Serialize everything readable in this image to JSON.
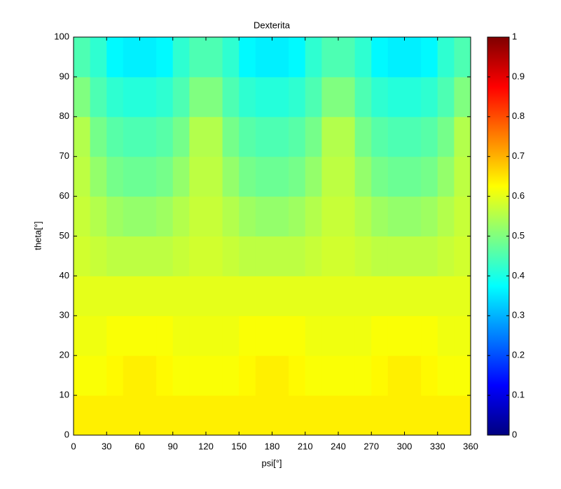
{
  "chart_data": {
    "type": "heatmap",
    "title": "Dexterita",
    "x_label": "psi[°]",
    "y_label": "theta[°]",
    "colormap": "jet",
    "xbins": [
      0,
      15,
      30,
      45,
      60,
      75,
      90,
      105,
      120,
      135,
      150,
      165,
      180,
      195,
      210,
      225,
      240,
      255,
      270,
      285,
      300,
      315,
      330,
      345,
      360
    ],
    "ybins": [
      0,
      10,
      20,
      30,
      40,
      50,
      60,
      70,
      80,
      90,
      100
    ],
    "z": [
      [
        0.64,
        0.64,
        0.64,
        0.64,
        0.64,
        0.64,
        0.64,
        0.64,
        0.64,
        0.64,
        0.64,
        0.64,
        0.64,
        0.64,
        0.64,
        0.64,
        0.64,
        0.64,
        0.64,
        0.64,
        0.64,
        0.64,
        0.64,
        0.64
      ],
      [
        0.62,
        0.62,
        0.63,
        0.64,
        0.64,
        0.63,
        0.62,
        0.62,
        0.62,
        0.62,
        0.63,
        0.64,
        0.64,
        0.63,
        0.62,
        0.62,
        0.62,
        0.62,
        0.63,
        0.64,
        0.64,
        0.63,
        0.62,
        0.62
      ],
      [
        0.61,
        0.61,
        0.62,
        0.62,
        0.62,
        0.62,
        0.61,
        0.61,
        0.61,
        0.61,
        0.62,
        0.62,
        0.62,
        0.62,
        0.61,
        0.61,
        0.61,
        0.61,
        0.62,
        0.62,
        0.62,
        0.62,
        0.61,
        0.61
      ],
      [
        0.6,
        0.6,
        0.6,
        0.6,
        0.6,
        0.6,
        0.6,
        0.6,
        0.6,
        0.6,
        0.6,
        0.6,
        0.6,
        0.6,
        0.6,
        0.6,
        0.6,
        0.6,
        0.6,
        0.6,
        0.6,
        0.6,
        0.6,
        0.6
      ],
      [
        0.58,
        0.57,
        0.56,
        0.56,
        0.56,
        0.56,
        0.57,
        0.58,
        0.58,
        0.57,
        0.56,
        0.56,
        0.56,
        0.56,
        0.57,
        0.58,
        0.58,
        0.57,
        0.56,
        0.56,
        0.56,
        0.56,
        0.57,
        0.58
      ],
      [
        0.57,
        0.55,
        0.53,
        0.52,
        0.52,
        0.53,
        0.55,
        0.57,
        0.57,
        0.55,
        0.53,
        0.52,
        0.52,
        0.53,
        0.55,
        0.57,
        0.57,
        0.55,
        0.53,
        0.52,
        0.52,
        0.53,
        0.55,
        0.57
      ],
      [
        0.56,
        0.52,
        0.49,
        0.48,
        0.48,
        0.49,
        0.52,
        0.56,
        0.56,
        0.52,
        0.49,
        0.48,
        0.48,
        0.49,
        0.52,
        0.56,
        0.56,
        0.52,
        0.49,
        0.48,
        0.48,
        0.49,
        0.52,
        0.56
      ],
      [
        0.55,
        0.49,
        0.46,
        0.45,
        0.45,
        0.46,
        0.49,
        0.55,
        0.55,
        0.49,
        0.46,
        0.45,
        0.45,
        0.46,
        0.49,
        0.55,
        0.55,
        0.49,
        0.46,
        0.45,
        0.45,
        0.46,
        0.49,
        0.55
      ],
      [
        0.5,
        0.45,
        0.42,
        0.41,
        0.41,
        0.42,
        0.45,
        0.5,
        0.5,
        0.45,
        0.42,
        0.41,
        0.41,
        0.42,
        0.45,
        0.5,
        0.5,
        0.45,
        0.42,
        0.41,
        0.41,
        0.42,
        0.45,
        0.5
      ],
      [
        0.45,
        0.42,
        0.37,
        0.36,
        0.36,
        0.37,
        0.42,
        0.45,
        0.45,
        0.42,
        0.37,
        0.36,
        0.36,
        0.37,
        0.42,
        0.45,
        0.45,
        0.42,
        0.37,
        0.36,
        0.36,
        0.37,
        0.42,
        0.45
      ]
    ],
    "xlim": [
      0,
      360
    ],
    "ylim": [
      0,
      100
    ],
    "clim": [
      0,
      1
    ],
    "xticks": [
      0,
      30,
      60,
      90,
      120,
      150,
      180,
      210,
      240,
      270,
      300,
      330,
      360
    ],
    "yticks": [
      0,
      10,
      20,
      30,
      40,
      50,
      60,
      70,
      80,
      90,
      100
    ],
    "cticks": [
      0,
      0.1,
      0.2,
      0.3,
      0.4,
      0.5,
      0.6,
      0.7,
      0.8,
      0.9,
      1
    ]
  }
}
